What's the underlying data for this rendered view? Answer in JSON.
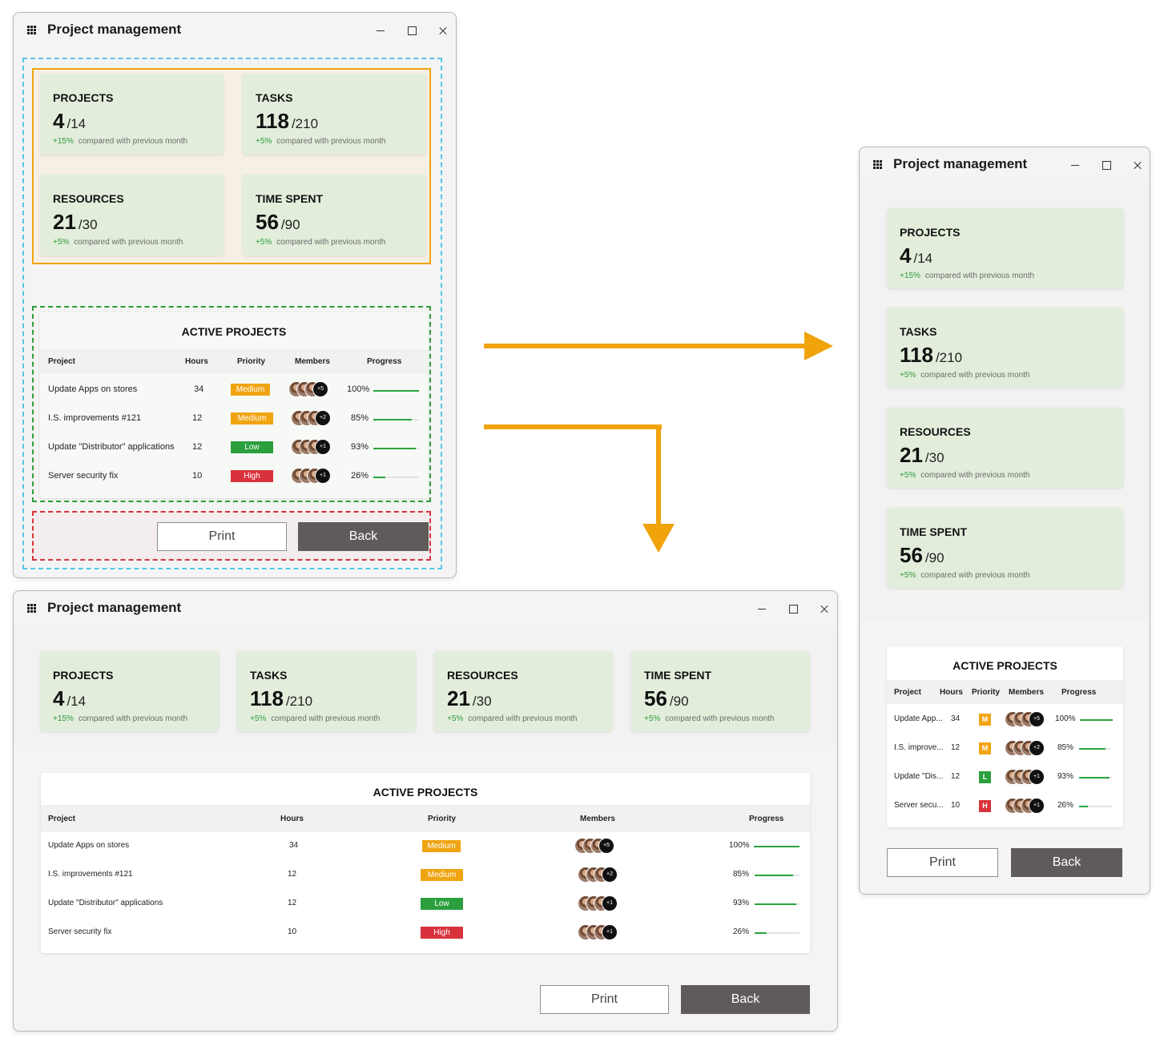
{
  "window": {
    "title": "Project management",
    "controls": {
      "minimize": "minimize",
      "maximize": "maximize",
      "close": "close"
    }
  },
  "stats": [
    {
      "label": "PROJECTS",
      "value": "4",
      "total": "/14",
      "change": "+15%",
      "note": "compared with previous month"
    },
    {
      "label": "TASKS",
      "value": "118",
      "total": "/210",
      "change": "+5%",
      "note": "compared with previous month"
    },
    {
      "label": "RESOURCES",
      "value": "21",
      "total": "/30",
      "change": "+5%",
      "note": "compared with previous month"
    },
    {
      "label": "TIME SPENT",
      "value": "56",
      "total": "/90",
      "change": "+5%",
      "note": "compared with previous month"
    }
  ],
  "active_projects": {
    "title": "ACTIVE PROJECTS",
    "columns": [
      "Project",
      "Hours",
      "Priority",
      "Members",
      "Progress"
    ],
    "rows": [
      {
        "project": "Update Apps on stores",
        "project_short": "Update App...",
        "hours": "34",
        "priority": "Medium",
        "priority_short": "M",
        "members_extra": "+5",
        "progress_label": "100%",
        "progress": 1.0
      },
      {
        "project": "I.S. improvements #121",
        "project_short": "I.S. improve...",
        "hours": "12",
        "priority": "Medium",
        "priority_short": "M",
        "members_extra": "+2",
        "progress_label": "85%",
        "progress": 0.85
      },
      {
        "project": "Update \"Distributor\" applications",
        "project_short": "Update \"Dis...",
        "hours": "12",
        "priority": "Low",
        "priority_short": "L",
        "members_extra": "+1",
        "progress_label": "93%",
        "progress": 0.93
      },
      {
        "project": "Server security fix",
        "project_short": "Server secu...",
        "hours": "10",
        "priority": "High",
        "priority_short": "H",
        "members_extra": "+1",
        "progress_label": "26%",
        "progress": 0.26
      }
    ]
  },
  "buttons": {
    "print": "Print",
    "back": "Back"
  },
  "colors": {
    "card_bg": "#e2eedb",
    "positive_change": "#2c9a3c",
    "medium": "#f0a412",
    "low": "#2b9f3d",
    "high": "#d8333c",
    "back_button": "#5f5b5b",
    "arrow": "#f0a30a",
    "outline_cyan": "#57c6e6",
    "outline_orange": "#f0a30a",
    "outline_green": "#2f9c3c",
    "outline_red": "#d8333c"
  }
}
